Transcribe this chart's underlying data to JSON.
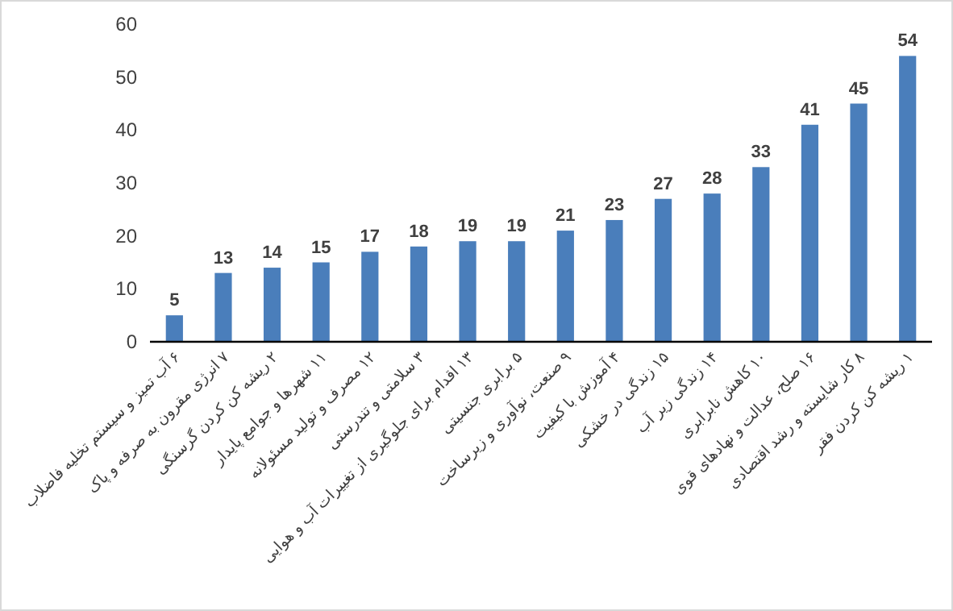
{
  "chart_data": {
    "type": "bar",
    "categories": [
      "۶ آب تمیز و سیستم تخلیه فاضلاب",
      "۷ انرژی مقرون به صرفه و پاک",
      "۲ ریشه کن کردن گرسنگی",
      "۱۱ شهرها و جوامع پایدار",
      "۱۲ مصرف و تولید مسئولانه",
      "۳ سلامتی و تندرستی",
      "۱۳ اقدام برای جلوگیری از تغییرات آب و هوایی",
      "۵ برابری جنسیتی",
      "۹ صنعت، نوآوری و زیرساخت",
      "۴ آموزش با کیفیت",
      "۱۵ زندگی در خشکی",
      "۱۴ زندگی زیر آب",
      "۱۰ کاهش نابرابری",
      "۱۶ صلح، عدالت و نهادهای قوی",
      "۸ کار شایسته و رشد اقتصادی",
      "۱ ریشه کن کردن فقر"
    ],
    "values": [
      5,
      13,
      14,
      15,
      17,
      18,
      19,
      19,
      21,
      23,
      27,
      28,
      33,
      41,
      45,
      54
    ],
    "color": "#4a7ebb",
    "ylim": [
      0,
      60
    ],
    "yticks": [
      0,
      10,
      20,
      30,
      40,
      50,
      60
    ],
    "data_labels": true
  }
}
